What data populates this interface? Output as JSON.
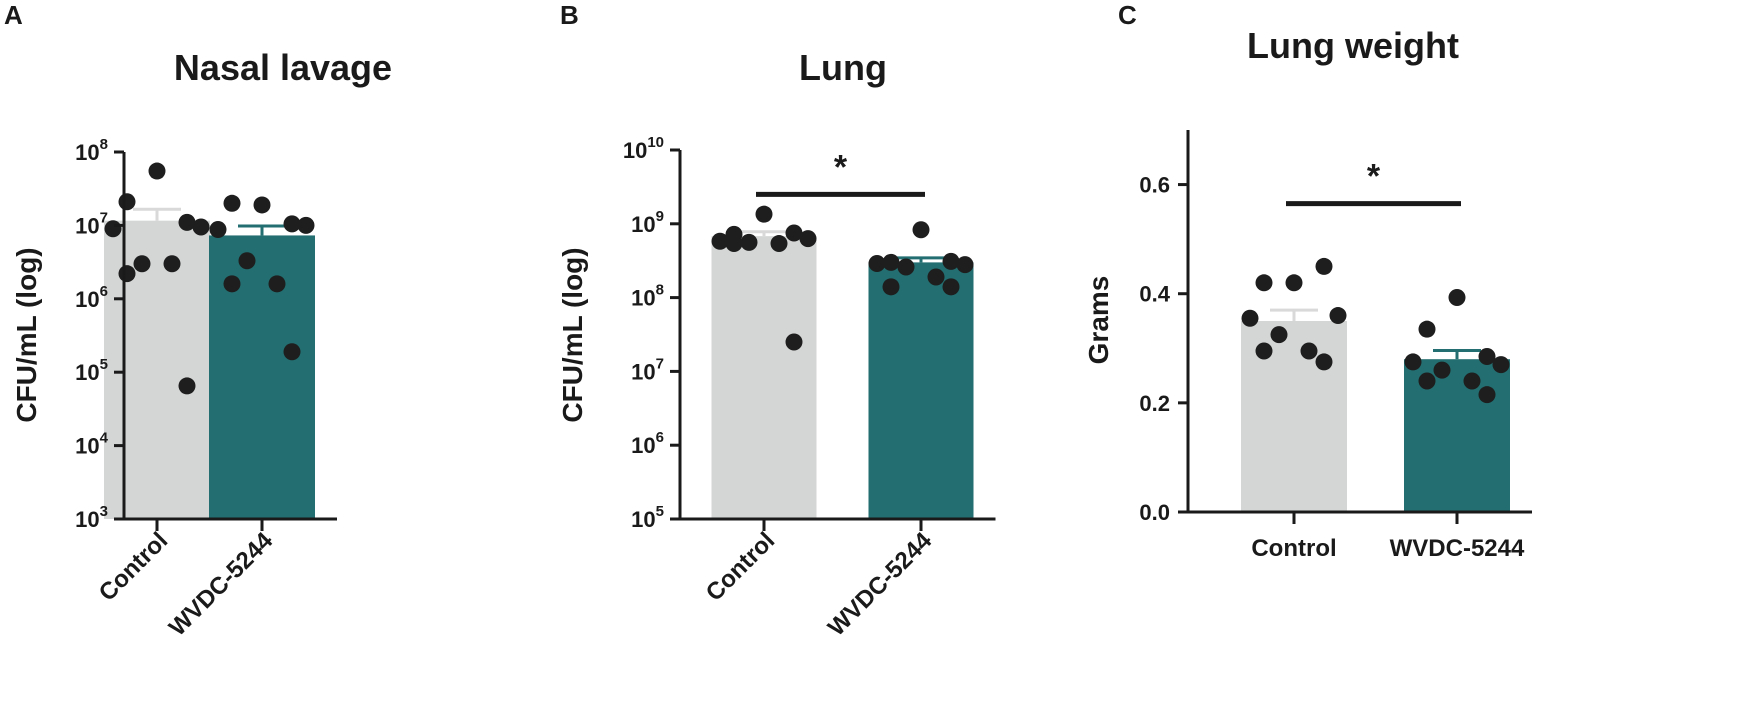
{
  "colors": {
    "control": "#d4d6d5",
    "treated": "#236e70",
    "dot": "#1e1e1e",
    "error": "#d9d9d9",
    "axis": "#1a1a1a"
  },
  "chart_data": [
    {
      "panel": "A",
      "type": "bar",
      "title": "Nasal lavage",
      "ylabel": "CFU/mL (log)",
      "yscale": "log",
      "ylim": [
        1000,
        100000000
      ],
      "yticks": [
        {
          "base": "10",
          "exp": "3"
        },
        {
          "base": "10",
          "exp": "4"
        },
        {
          "base": "10",
          "exp": "5"
        },
        {
          "base": "10",
          "exp": "6"
        },
        {
          "base": "10",
          "exp": "7"
        },
        {
          "base": "10",
          "exp": "8"
        }
      ],
      "categories": [
        "Control",
        "WVDC-5244"
      ],
      "values": [
        11600000,
        7300000
      ],
      "errors": [
        5000000,
        2500000
      ],
      "points": [
        [
          55000000,
          21000000,
          11000000,
          9000000,
          9500000,
          3000000,
          3000000,
          2200000,
          65000
        ],
        [
          19000000,
          20000000,
          10500000,
          8800000,
          10000000,
          3300000,
          1600000,
          1600000,
          190000
        ]
      ],
      "significance": null
    },
    {
      "panel": "B",
      "type": "bar",
      "title": "Lung",
      "ylabel": "CFU/mL (log)",
      "yscale": "log",
      "ylim": [
        100000,
        10000000000
      ],
      "yticks": [
        {
          "base": "10",
          "exp": "5"
        },
        {
          "base": "10",
          "exp": "6"
        },
        {
          "base": "10",
          "exp": "7"
        },
        {
          "base": "10",
          "exp": "8"
        },
        {
          "base": "10",
          "exp": "9"
        },
        {
          "base": "10",
          "exp": "10"
        }
      ],
      "categories": [
        "Control",
        "WVDC-5244"
      ],
      "values": [
        680000000,
        300000000
      ],
      "errors": [
        100000000,
        45000000
      ],
      "points": [
        [
          1350000000,
          720000000,
          750000000,
          580000000,
          630000000,
          560000000,
          540000000,
          540000000,
          25000000
        ],
        [
          830000000,
          300000000,
          310000000,
          290000000,
          280000000,
          260000000,
          190000000,
          140000000,
          140000000
        ]
      ],
      "significance": {
        "label": "*",
        "y": 2500000000
      }
    },
    {
      "panel": "C",
      "type": "bar",
      "title": "Lung weight",
      "ylabel": "Grams",
      "yscale": "linear",
      "ylim": [
        0,
        0.7
      ],
      "yticks": [
        "0.0",
        "0.2",
        "0.4",
        "0.6"
      ],
      "yticks_values": [
        0,
        0.2,
        0.4,
        0.6
      ],
      "categories": [
        "Control",
        "WVDC-5244"
      ],
      "values": [
        0.35,
        0.28
      ],
      "errors": [
        0.02,
        0.016
      ],
      "points": [
        [
          0.42,
          0.42,
          0.45,
          0.355,
          0.36,
          0.325,
          0.295,
          0.295,
          0.275
        ],
        [
          0.393,
          0.335,
          0.285,
          0.275,
          0.27,
          0.26,
          0.24,
          0.24,
          0.215
        ]
      ],
      "significance": {
        "label": "*",
        "y": 0.565
      }
    }
  ]
}
